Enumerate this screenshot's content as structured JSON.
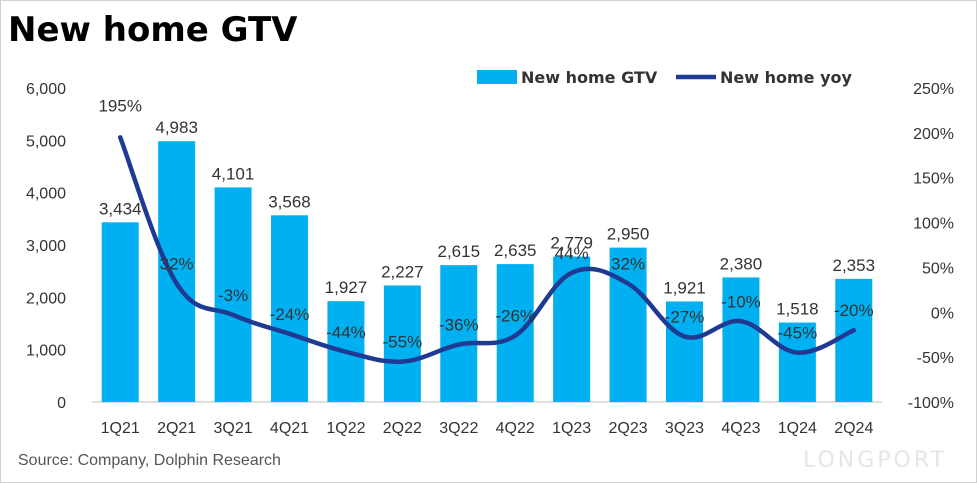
{
  "title": "New home GTV",
  "source": "Source: Company, Dolphin Research",
  "watermark": "LONGPORT",
  "colors": {
    "bar": "#00b0f0",
    "line": "#1f3a93",
    "text": "#333333"
  },
  "chart_data": {
    "type": "bar",
    "categories": [
      "1Q21",
      "2Q21",
      "3Q21",
      "4Q21",
      "1Q22",
      "2Q22",
      "3Q22",
      "4Q22",
      "1Q23",
      "2Q23",
      "3Q23",
      "4Q23",
      "1Q24",
      "2Q24"
    ],
    "series": [
      {
        "name": "New home GTV",
        "type": "bar",
        "axis": "left",
        "values": [
          3434,
          4983,
          4101,
          3568,
          1927,
          2227,
          2615,
          2635,
          2779,
          2950,
          1921,
          2380,
          1518,
          2353
        ],
        "labels": [
          "3,434",
          "4,983",
          "4,101",
          "3,568",
          "1,927",
          "2,227",
          "2,615",
          "2,635",
          "2,779",
          "2,950",
          "1,921",
          "2,380",
          "1,518",
          "2,353"
        ]
      },
      {
        "name": "New home yoy",
        "type": "line",
        "axis": "right",
        "values": [
          195,
          32,
          -3,
          -24,
          -44,
          -55,
          -36,
          -26,
          44,
          32,
          -27,
          -10,
          -45,
          -20
        ],
        "labels": [
          "195%",
          "32%",
          "-3%",
          "-24%",
          "-44%",
          "-55%",
          "-36%",
          "-26%",
          "44%",
          "32%",
          "-27%",
          "-10%",
          "-45%",
          "-20%"
        ]
      }
    ],
    "y_left": {
      "range": [
        0,
        6000
      ],
      "ticks": [
        0,
        1000,
        2000,
        3000,
        4000,
        5000,
        6000
      ],
      "tick_labels": [
        "0",
        "1,000",
        "2,000",
        "3,000",
        "4,000",
        "5,000",
        "6,000"
      ]
    },
    "y_right": {
      "range": [
        -100,
        250
      ],
      "ticks": [
        -100,
        -50,
        0,
        50,
        100,
        150,
        200,
        250
      ],
      "tick_labels": [
        "-100%",
        "-50%",
        "0%",
        "50%",
        "100%",
        "150%",
        "200%",
        "250%"
      ]
    },
    "legend": "top-right",
    "grid": false
  }
}
